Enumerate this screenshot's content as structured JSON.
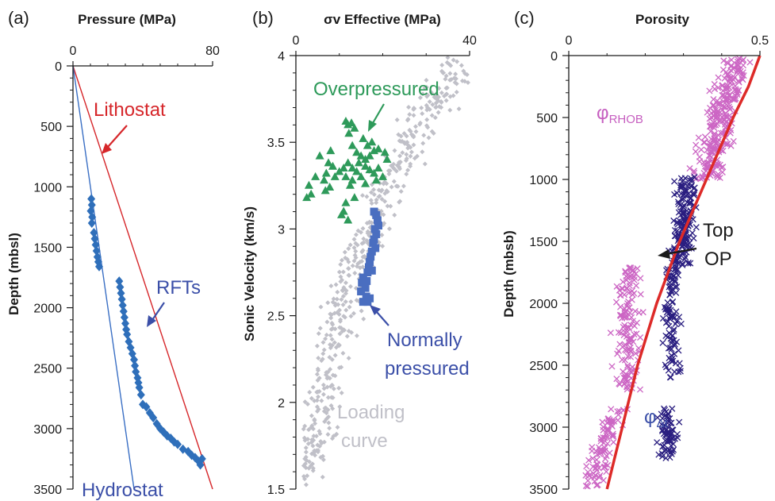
{
  "colors": {
    "axis": "#1a1a1a",
    "lithostat": "#d6262a",
    "hydrostat": "#3a6fc4",
    "rft": "#2f6fba",
    "overpressured": "#2e9a5a",
    "normally_pressured": "#4a6ec0",
    "loading_curve": "#c0c0c8",
    "phi_rhob": "#cc66c4",
    "phi_dt": "#2a1e80",
    "trend": "#dd2a28",
    "label_blue": "#3b4fa8",
    "label_magenta": "#c65fc0"
  },
  "chart_data": [
    {
      "panel_label": "(a)",
      "type": "scatter",
      "xlabel": "Pressure (MPa)",
      "ylabel": "Depth (mbsl)",
      "xlim": [
        0,
        80
      ],
      "ylim": [
        0,
        3500
      ],
      "x_inverted_axis_on_top": true,
      "y_inverted": true,
      "xticks": [
        "0",
        "80"
      ],
      "yticks": [
        "0",
        "500",
        "1000",
        "1500",
        "2000",
        "2500",
        "3000",
        "3500"
      ],
      "lines": [
        {
          "name": "Lithostat",
          "x": [
            0,
            80
          ],
          "y": [
            0,
            3500
          ]
        },
        {
          "name": "Hydrostat",
          "x": [
            0,
            35
          ],
          "y": [
            0,
            3500
          ]
        }
      ],
      "series": [
        {
          "name": "RFTs",
          "points": [
            [
              10.5,
              1100
            ],
            [
              10.8,
              1150
            ],
            [
              10.2,
              1200
            ],
            [
              11,
              1250
            ],
            [
              10.8,
              1300
            ],
            [
              12,
              1380
            ],
            [
              12.5,
              1430
            ],
            [
              13,
              1480
            ],
            [
              13.5,
              1530
            ],
            [
              14,
              1580
            ],
            [
              14.5,
              1620
            ],
            [
              15,
              1660
            ],
            [
              26.5,
              1780
            ],
            [
              27,
              1830
            ],
            [
              27.5,
              1880
            ],
            [
              28,
              1930
            ],
            [
              28.5,
              1980
            ],
            [
              29,
              2030
            ],
            [
              29.5,
              2080
            ],
            [
              30,
              2130
            ],
            [
              30.5,
              2180
            ],
            [
              31,
              2220
            ],
            [
              32,
              2280
            ],
            [
              33,
              2330
            ],
            [
              34,
              2380
            ],
            [
              35,
              2430
            ],
            [
              35.5,
              2480
            ],
            [
              36,
              2530
            ],
            [
              37,
              2580
            ],
            [
              37.5,
              2620
            ],
            [
              38,
              2660
            ],
            [
              39,
              2720
            ],
            [
              40,
              2800
            ],
            [
              42,
              2820
            ],
            [
              44,
              2870
            ],
            [
              46,
              2910
            ],
            [
              48,
              2960
            ],
            [
              50,
              3000
            ],
            [
              52,
              3030
            ],
            [
              54,
              3060
            ],
            [
              56,
              3080
            ],
            [
              58,
              3110
            ],
            [
              60,
              3130
            ],
            [
              63,
              3170
            ],
            [
              66,
              3190
            ],
            [
              68,
              3220
            ],
            [
              70,
              3240
            ],
            [
              72,
              3270
            ],
            [
              73,
              3300
            ],
            [
              74,
              3250
            ]
          ]
        }
      ],
      "annotations": [
        {
          "text": "Lithostat",
          "color": "lithostat"
        },
        {
          "text": "RFTs",
          "color": "label_blue"
        },
        {
          "text": "Hydrostat",
          "color": "label_blue"
        }
      ]
    },
    {
      "panel_label": "(b)",
      "type": "scatter",
      "xlabel": "σv Effective (MPa)",
      "ylabel": "Sonic Velocity (km/s)",
      "xlim": [
        0,
        40
      ],
      "ylim": [
        1.5,
        4
      ],
      "x_axis_on_top": true,
      "xticks": [
        "0",
        "40"
      ],
      "yticks": [
        "1.5",
        "2",
        "2.5",
        "3",
        "3.5",
        "4"
      ],
      "loading_curve_envelope": [
        [
          2,
          1.55
        ],
        [
          4,
          1.75
        ],
        [
          6,
          2.0
        ],
        [
          8,
          2.3
        ],
        [
          10,
          2.55
        ],
        [
          14,
          2.8
        ],
        [
          18,
          3.05
        ],
        [
          22,
          3.3
        ],
        [
          27,
          3.55
        ],
        [
          32,
          3.75
        ],
        [
          38,
          3.95
        ]
      ],
      "loading_curve_spread": {
        "min_x": 1.5,
        "max_x": 40,
        "count": 520
      },
      "series": [
        {
          "name": "Overpressured",
          "points": [
            [
              11.5,
              3.62
            ],
            [
              12,
              3.6
            ],
            [
              12.8,
              3.61
            ],
            [
              13.5,
              3.58
            ],
            [
              12.2,
              3.55
            ],
            [
              16.5,
              3.48
            ],
            [
              17.5,
              3.5
            ],
            [
              19,
              3.46
            ],
            [
              20.5,
              3.44
            ],
            [
              21,
              3.4
            ],
            [
              13,
              3.48
            ],
            [
              14,
              3.44
            ],
            [
              15,
              3.42
            ],
            [
              16,
              3.4
            ],
            [
              14.5,
              3.38
            ],
            [
              16,
              3.36
            ],
            [
              17,
              3.34
            ],
            [
              18,
              3.32
            ],
            [
              19,
              3.35
            ],
            [
              20,
              3.3
            ],
            [
              18.5,
              3.28
            ],
            [
              16,
              3.26
            ],
            [
              15,
              3.3
            ],
            [
              14,
              3.33
            ],
            [
              13,
              3.35
            ],
            [
              12,
              3.38
            ],
            [
              11.5,
              3.3
            ],
            [
              12.5,
              3.25
            ],
            [
              8,
              3.45
            ],
            [
              7.5,
              3.38
            ],
            [
              7,
              3.32
            ],
            [
              6.5,
              3.28
            ],
            [
              6.8,
              3.22
            ],
            [
              7.8,
              3.24
            ],
            [
              5.5,
              3.42
            ],
            [
              4.5,
              3.3
            ],
            [
              3.5,
              3.2
            ],
            [
              2.5,
              3.18
            ],
            [
              3,
              3.25
            ],
            [
              8.5,
              3.36
            ],
            [
              9,
              3.3
            ],
            [
              10,
              3.33
            ],
            [
              11,
              3.35
            ],
            [
              13.5,
              3.18
            ],
            [
              11.5,
              3.15
            ],
            [
              11,
              3.1
            ],
            [
              12,
              3.05
            ],
            [
              10.5,
              3.08
            ],
            [
              13,
              3.28
            ],
            [
              17,
              3.42
            ],
            [
              15.5,
              3.52
            ],
            [
              18,
              3.45
            ]
          ]
        },
        {
          "name": "Normally pressured",
          "points": [
            [
              18.5,
              3.08
            ],
            [
              18.8,
              3.05
            ],
            [
              19,
              3.02
            ],
            [
              18.2,
              3.0
            ],
            [
              18.5,
              2.97
            ],
            [
              18,
              2.94
            ],
            [
              17.8,
              2.92
            ],
            [
              18.3,
              2.89
            ],
            [
              17.5,
              2.87
            ],
            [
              17.2,
              2.84
            ],
            [
              17,
              2.81
            ],
            [
              16.8,
              2.78
            ],
            [
              16.5,
              2.75
            ],
            [
              15.5,
              2.72
            ],
            [
              15.2,
              2.69
            ],
            [
              16,
              2.66
            ],
            [
              15,
              2.64
            ],
            [
              16.2,
              2.61
            ],
            [
              15.5,
              2.58
            ],
            [
              16.5,
              2.58
            ],
            [
              17,
              2.6
            ],
            [
              18,
              3.1
            ],
            [
              16.3,
              2.7
            ],
            [
              17.5,
              2.76
            ]
          ]
        }
      ],
      "annotations": [
        {
          "text": "Overpressured",
          "color": "overpressured"
        },
        {
          "text": "Normally",
          "color": "label_blue"
        },
        {
          "text": "pressured",
          "color": "label_blue"
        },
        {
          "text": "Loading",
          "color": "loading_curve"
        },
        {
          "text": "curve",
          "color": "loading_curve"
        }
      ]
    },
    {
      "panel_label": "(c)",
      "type": "scatter",
      "xlabel": "Porosity",
      "ylabel": "Depth (mbsb)",
      "xlim": [
        0,
        0.5
      ],
      "ylim": [
        0,
        3500
      ],
      "x_axis_on_top": true,
      "y_inverted": true,
      "xticks": [
        "0",
        "0.5"
      ],
      "yticks": [
        "0",
        "500",
        "1000",
        "1500",
        "2000",
        "2500",
        "3000",
        "3500"
      ],
      "trend_line": {
        "depth": [
          0,
          250,
          500,
          750,
          1000,
          1250,
          1500,
          1750,
          2000,
          2250,
          2500,
          2750,
          3000,
          3250,
          3500
        ],
        "porosity": [
          0.5,
          0.47,
          0.43,
          0.395,
          0.36,
          0.325,
          0.29,
          0.26,
          0.23,
          0.205,
          0.18,
          0.16,
          0.14,
          0.12,
          0.1
        ]
      },
      "series": [
        {
          "name": "φRHOB",
          "clusters": [
            {
              "depth": [
                20,
                1000
              ],
              "phi_center_top": 0.44,
              "phi_center_bottom": 0.36,
              "spread": 0.06,
              "count": 260
            },
            {
              "depth": [
                1700,
                2700
              ],
              "phi_center_top": 0.16,
              "phi_center_bottom": 0.15,
              "spread": 0.05,
              "count": 140
            },
            {
              "depth": [
                2850,
                3480
              ],
              "phi_center_top": 0.12,
              "phi_center_bottom": 0.06,
              "spread": 0.04,
              "count": 90
            }
          ]
        },
        {
          "name": "φΔt",
          "clusters": [
            {
              "depth": [
                980,
                1700
              ],
              "phi_center_top": 0.31,
              "phi_center_bottom": 0.29,
              "spread": 0.04,
              "count": 170
            },
            {
              "depth": [
                1700,
                2600
              ],
              "phi_center_top": 0.27,
              "phi_center_bottom": 0.27,
              "spread": 0.03,
              "count": 100
            },
            {
              "depth": [
                2850,
                3250
              ],
              "phi_center_top": 0.26,
              "phi_center_bottom": 0.26,
              "spread": 0.035,
              "count": 70
            }
          ]
        }
      ],
      "annotations": [
        {
          "text": "φ",
          "sub": "RHOB",
          "color": "label_magenta"
        },
        {
          "text": "Top",
          "color": "axis"
        },
        {
          "text": "OP",
          "color": "axis"
        },
        {
          "text": "φ",
          "sub": "Δt",
          "color": "label_blue"
        }
      ]
    }
  ]
}
